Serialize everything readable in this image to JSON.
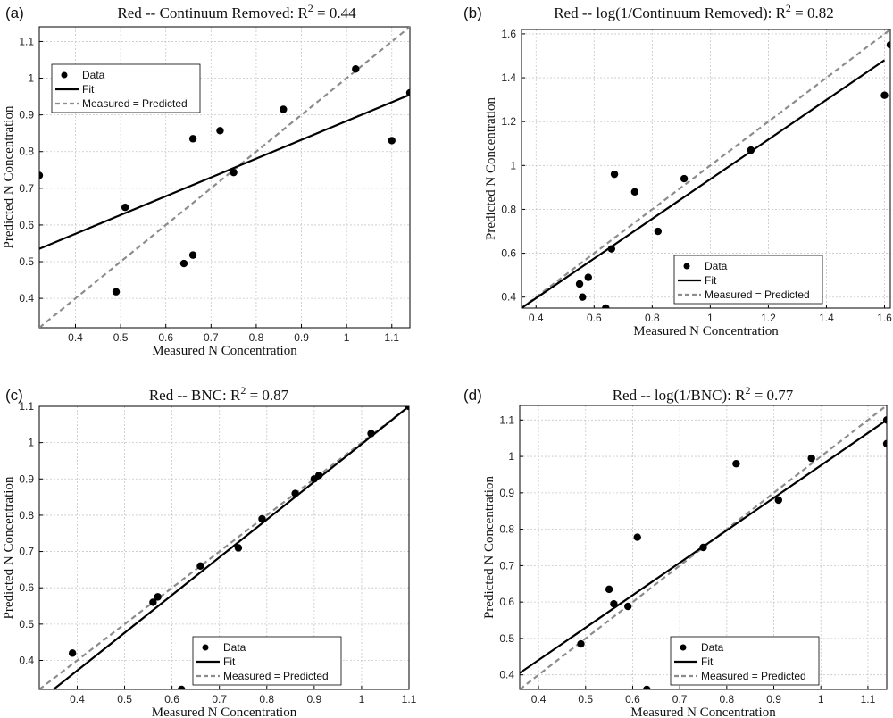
{
  "chart_data": [
    {
      "type": "scatter",
      "panel_label": "(a)",
      "title": "Red -- Continuum Removed: R",
      "title_sup": "2",
      "title_suffix": " = 0.44",
      "xlabel": "Measured N Concentration",
      "ylabel": "Predicted N Concentration",
      "xlim": [
        0.32,
        1.14
      ],
      "ylim": [
        0.32,
        1.14
      ],
      "xticks": [
        0.4,
        0.5,
        0.6,
        0.7,
        0.8,
        0.9,
        1,
        1.1
      ],
      "yticks": [
        0.4,
        0.5,
        0.6,
        0.7,
        0.8,
        0.9,
        1,
        1.1
      ],
      "grid": true,
      "legend_position": "top-left",
      "legend": [
        "Data",
        "Fit",
        "Measured = Predicted"
      ],
      "points": [
        [
          0.32,
          0.735
        ],
        [
          0.49,
          0.418
        ],
        [
          0.51,
          0.648
        ],
        [
          0.64,
          0.495
        ],
        [
          0.66,
          0.518
        ],
        [
          0.66,
          0.835
        ],
        [
          0.72,
          0.857
        ],
        [
          0.75,
          0.743
        ],
        [
          0.86,
          0.915
        ],
        [
          1.02,
          1.025
        ],
        [
          1.1,
          0.83
        ],
        [
          1.14,
          0.96
        ]
      ],
      "fit_line": [
        [
          0.32,
          0.535
        ],
        [
          1.14,
          0.955
        ]
      ],
      "identity_line": [
        [
          0.32,
          0.32
        ],
        [
          1.14,
          1.14
        ]
      ]
    },
    {
      "type": "scatter",
      "panel_label": "(b)",
      "title": "Red -- log(1/Continuum Removed): R",
      "title_sup": "2",
      "title_suffix": " = 0.82",
      "xlabel": "Measured N Concentration",
      "ylabel": "Predicted N Concentration",
      "xlim": [
        0.35,
        1.62
      ],
      "ylim": [
        0.35,
        1.62
      ],
      "xticks": [
        0.4,
        0.6,
        0.8,
        1,
        1.2,
        1.4,
        1.6
      ],
      "yticks": [
        0.4,
        0.6,
        0.8,
        1,
        1.2,
        1.4,
        1.6
      ],
      "grid": true,
      "legend_position": "bottom-right",
      "legend": [
        "Data",
        "Fit",
        "Measured = Predicted"
      ],
      "points": [
        [
          0.55,
          0.46
        ],
        [
          0.56,
          0.4
        ],
        [
          0.58,
          0.49
        ],
        [
          0.64,
          0.35
        ],
        [
          0.66,
          0.62
        ],
        [
          0.67,
          0.96
        ],
        [
          0.74,
          0.88
        ],
        [
          0.82,
          0.7
        ],
        [
          0.91,
          0.94
        ],
        [
          1.14,
          1.07
        ],
        [
          1.6,
          1.32
        ],
        [
          1.62,
          1.55
        ]
      ],
      "fit_line": [
        [
          0.35,
          0.35
        ],
        [
          1.6,
          1.48
        ]
      ],
      "identity_line": [
        [
          0.35,
          0.35
        ],
        [
          1.62,
          1.62
        ]
      ]
    },
    {
      "type": "scatter",
      "panel_label": "(c)",
      "title": "Red -- BNC: R",
      "title_sup": "2",
      "title_suffix": " = 0.87",
      "xlabel": "Measured N Concentration",
      "ylabel": "Predicted N Concentration",
      "xlim": [
        0.32,
        1.1
      ],
      "ylim": [
        0.32,
        1.1
      ],
      "xticks": [
        0.4,
        0.5,
        0.6,
        0.7,
        0.8,
        0.9,
        1,
        1.1
      ],
      "yticks": [
        0.4,
        0.5,
        0.6,
        0.7,
        0.8,
        0.9,
        1,
        1.1
      ],
      "grid": true,
      "legend_position": "bottom-right",
      "legend": [
        "Data",
        "Fit",
        "Measured = Predicted"
      ],
      "points": [
        [
          0.39,
          0.42
        ],
        [
          0.56,
          0.56
        ],
        [
          0.57,
          0.575
        ],
        [
          0.62,
          0.32
        ],
        [
          0.66,
          0.66
        ],
        [
          0.74,
          0.71
        ],
        [
          0.79,
          0.79
        ],
        [
          0.86,
          0.86
        ],
        [
          0.9,
          0.9
        ],
        [
          0.91,
          0.91
        ],
        [
          1.02,
          1.025
        ],
        [
          1.1,
          1.1
        ]
      ],
      "fit_line": [
        [
          0.35,
          0.32
        ],
        [
          1.1,
          1.1
        ]
      ],
      "identity_line": [
        [
          0.32,
          0.32
        ],
        [
          1.1,
          1.1
        ]
      ]
    },
    {
      "type": "scatter",
      "panel_label": "(d)",
      "title": "Red -- log(1/BNC): R",
      "title_sup": "2",
      "title_suffix": " = 0.77",
      "xlabel": "Measured N Concentration",
      "ylabel": "Predicted N Concentration",
      "xlim": [
        0.36,
        1.14
      ],
      "ylim": [
        0.36,
        1.14
      ],
      "xticks": [
        0.4,
        0.5,
        0.6,
        0.7,
        0.8,
        0.9,
        1,
        1.1
      ],
      "yticks": [
        0.4,
        0.5,
        0.6,
        0.7,
        0.8,
        0.9,
        1,
        1.1
      ],
      "grid": true,
      "legend_position": "bottom-right",
      "legend": [
        "Data",
        "Fit",
        "Measured = Predicted"
      ],
      "points": [
        [
          0.49,
          0.485
        ],
        [
          0.55,
          0.635
        ],
        [
          0.56,
          0.595
        ],
        [
          0.59,
          0.588
        ],
        [
          0.61,
          0.778
        ],
        [
          0.63,
          0.36
        ],
        [
          0.75,
          0.75
        ],
        [
          0.82,
          0.98
        ],
        [
          0.91,
          0.88
        ],
        [
          0.98,
          0.995
        ],
        [
          1.14,
          1.1
        ],
        [
          1.14,
          1.035
        ]
      ],
      "fit_line": [
        [
          0.36,
          0.405
        ],
        [
          1.14,
          1.1
        ]
      ],
      "identity_line": [
        [
          0.36,
          0.36
        ],
        [
          1.14,
          1.14
        ]
      ]
    }
  ],
  "style": {
    "data_color": "#000000",
    "fit_color": "#000000",
    "identity_color": "#8c8c8c",
    "grid_color": "#c8c8c8",
    "axis_color": "#000000"
  }
}
